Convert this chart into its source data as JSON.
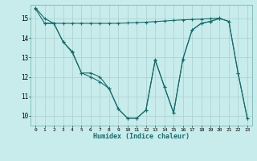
{
  "bg_color": "#c8ecec",
  "grid_color": "#b0d4d4",
  "line_color": "#1a6b6b",
  "xlabel": "Humidex (Indice chaleur)",
  "xlim": [
    -0.5,
    23.5
  ],
  "ylim": [
    9.5,
    15.7
  ],
  "yticks": [
    10,
    11,
    12,
    13,
    14,
    15
  ],
  "xticks": [
    0,
    1,
    2,
    3,
    4,
    5,
    6,
    7,
    8,
    9,
    10,
    11,
    12,
    13,
    14,
    15,
    16,
    17,
    18,
    19,
    20,
    21,
    22,
    23
  ],
  "line1_x": [
    0,
    1,
    2,
    3,
    4,
    5,
    6,
    7,
    8,
    9,
    10,
    11,
    12,
    13,
    14,
    15,
    16,
    17,
    18,
    19,
    20,
    21,
    22,
    23
  ],
  "line1_y": [
    15.55,
    15.0,
    14.75,
    13.8,
    13.3,
    12.2,
    12.2,
    12.0,
    11.4,
    10.35,
    9.88,
    9.88,
    10.3,
    12.88,
    11.5,
    10.15,
    12.9,
    14.4,
    14.75,
    14.85,
    15.0,
    14.85,
    12.2,
    9.88
  ],
  "line2_x": [
    1,
    2,
    3,
    4,
    5,
    6,
    7,
    8,
    9,
    10,
    11,
    12,
    13,
    14,
    15,
    16,
    17,
    18,
    19,
    20
  ],
  "line2_y": [
    14.75,
    14.75,
    14.75,
    14.75,
    14.75,
    14.75,
    14.75,
    14.75,
    14.75,
    14.77,
    14.79,
    14.81,
    14.84,
    14.87,
    14.9,
    14.93,
    14.95,
    14.97,
    14.99,
    15.02
  ],
  "line3_x": [
    0,
    1,
    2,
    3,
    4,
    5,
    6,
    7,
    8,
    9,
    10,
    11,
    12,
    13,
    14,
    15,
    16,
    17,
    18,
    19,
    20,
    21,
    22,
    23
  ],
  "line3_y": [
    15.5,
    14.75,
    14.75,
    13.8,
    13.25,
    12.2,
    12.0,
    11.75,
    11.4,
    10.35,
    9.88,
    9.88,
    10.3,
    12.85,
    11.5,
    10.15,
    12.9,
    14.4,
    14.75,
    14.85,
    15.0,
    14.85,
    12.2,
    9.88
  ]
}
